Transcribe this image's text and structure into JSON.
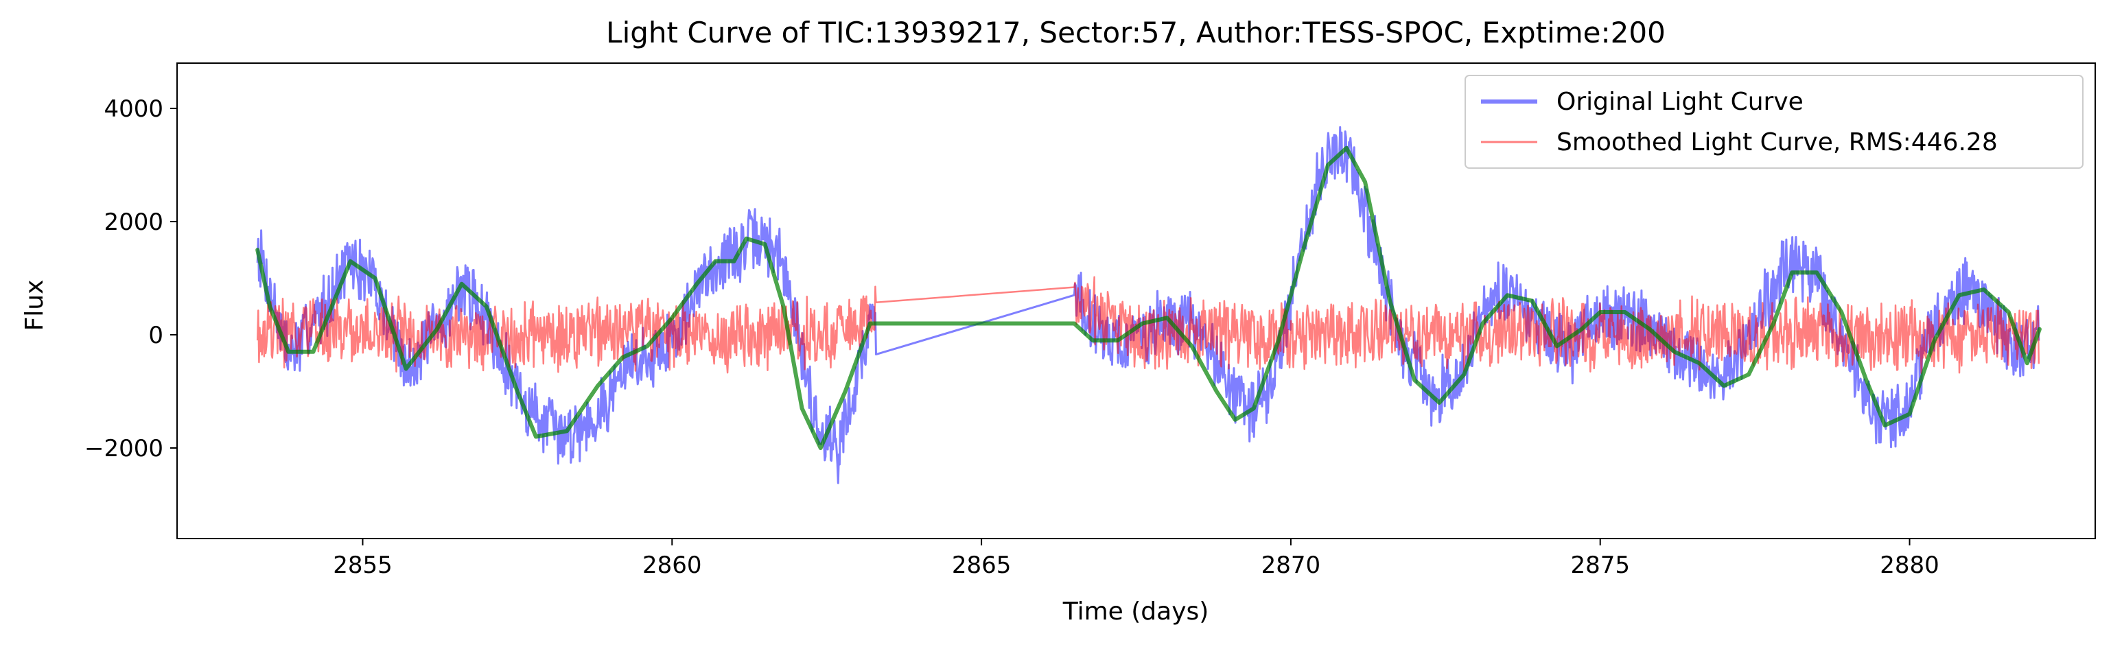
{
  "chart_data": {
    "type": "line",
    "title": "Light Curve of TIC:13939217, Sector:57, Author:TESS-SPOC, Exptime:200",
    "xlabel": "Time (days)",
    "ylabel": "Flux",
    "xlim": [
      2852.0,
      2883.0
    ],
    "ylim": [
      -3600,
      4800
    ],
    "x_ticks": [
      2855,
      2860,
      2865,
      2870,
      2875,
      2880
    ],
    "y_ticks": [
      -2000,
      0,
      2000,
      4000
    ],
    "x_tick_labels": [
      "2855",
      "2860",
      "2865",
      "2870",
      "2875",
      "2880"
    ],
    "y_tick_labels": [
      "−2000",
      "0",
      "2000",
      "4000"
    ],
    "grid": false,
    "legend_position": "top-right",
    "gap": [
      2863.3,
      2866.5
    ],
    "series": [
      {
        "name": "Original Light Curve",
        "role": "original",
        "color": "#0000ff",
        "alpha": 0.5,
        "x": [
          2853.3,
          2853.8,
          2854.2,
          2854.8,
          2855.2,
          2855.7,
          2856.3,
          2856.6,
          2857.0,
          2857.6,
          2858.2,
          2858.8,
          2859.3,
          2859.8,
          2860.2,
          2860.6,
          2861.0,
          2861.3,
          2861.7,
          2862.0,
          2862.3,
          2862.7,
          2863.2,
          2866.5,
          2866.8,
          2867.3,
          2867.9,
          2868.4,
          2868.9,
          2869.3,
          2869.7,
          2870.1,
          2870.5,
          2870.9,
          2871.3,
          2871.8,
          2872.3,
          2872.8,
          2873.2,
          2873.6,
          2874.0,
          2874.5,
          2875.0,
          2875.5,
          2876.0,
          2876.5,
          2877.0,
          2877.5,
          2878.0,
          2878.5,
          2879.0,
          2879.5,
          2879.9,
          2880.4,
          2880.9,
          2881.4,
          2881.8,
          2882.1
        ],
        "y": [
          1600,
          -400,
          200,
          1300,
          900,
          -600,
          200,
          900,
          300,
          -1200,
          -1800,
          -1400,
          -500,
          -300,
          300,
          1200,
          1400,
          1700,
          1500,
          300,
          -1500,
          -2000,
          200,
          800,
          200,
          -200,
          200,
          200,
          -600,
          -1400,
          -900,
          1200,
          3000,
          3300,
          1800,
          -200,
          -1100,
          -600,
          600,
          700,
          100,
          -300,
          400,
          300,
          -100,
          -500,
          -800,
          200,
          1200,
          1000,
          -300,
          -1600,
          -1400,
          200,
          800,
          300,
          -400,
          100
        ],
        "noise_amplitude": 650
      },
      {
        "name": "Smoothed Light Curve, RMS:446.28",
        "role": "residual",
        "color": "#ff0000",
        "alpha": 0.5,
        "x": [
          2853.3,
          2854.5,
          2855.5,
          2856.5,
          2857.5,
          2858.5,
          2859.5,
          2860.5,
          2861.5,
          2862.5,
          2863.2,
          2866.5,
          2867.5,
          2868.5,
          2869.5,
          2870.5,
          2871.5,
          2872.5,
          2873.5,
          2874.5,
          2875.5,
          2876.5,
          2877.5,
          2878.5,
          2879.5,
          2880.5,
          2881.5,
          2882.1
        ],
        "y": [
          100,
          50,
          0,
          50,
          -50,
          0,
          50,
          0,
          -50,
          0,
          400,
          650,
          0,
          50,
          0,
          -50,
          50,
          0,
          50,
          0,
          -50,
          50,
          0,
          50,
          0,
          -50,
          50,
          0
        ],
        "noise_amplitude": 700
      },
      {
        "name": "",
        "role": "smooth",
        "color": "#008000",
        "alpha": 0.7,
        "x": [
          2853.3,
          2853.5,
          2853.8,
          2854.2,
          2854.8,
          2855.2,
          2855.7,
          2856.2,
          2856.6,
          2857.0,
          2857.5,
          2857.8,
          2858.3,
          2858.8,
          2859.2,
          2859.6,
          2860.0,
          2860.4,
          2860.7,
          2861.0,
          2861.2,
          2861.5,
          2861.8,
          2862.1,
          2862.4,
          2862.8,
          2863.2,
          2866.5,
          2866.8,
          2867.2,
          2867.6,
          2868.0,
          2868.4,
          2868.8,
          2869.1,
          2869.4,
          2869.8,
          2870.2,
          2870.6,
          2870.9,
          2871.2,
          2871.6,
          2872.0,
          2872.4,
          2872.8,
          2873.1,
          2873.5,
          2873.9,
          2874.3,
          2874.7,
          2875.0,
          2875.4,
          2875.8,
          2876.2,
          2876.6,
          2877.0,
          2877.4,
          2877.8,
          2878.1,
          2878.5,
          2878.9,
          2879.3,
          2879.6,
          2880.0,
          2880.4,
          2880.8,
          2881.2,
          2881.6,
          2881.9,
          2882.1
        ],
        "y": [
          1500,
          500,
          -300,
          -300,
          1300,
          1000,
          -600,
          100,
          900,
          500,
          -1000,
          -1800,
          -1700,
          -900,
          -400,
          -200,
          300,
          900,
          1300,
          1300,
          1700,
          1600,
          500,
          -1300,
          -2000,
          -1000,
          200,
          200,
          -100,
          -100,
          200,
          300,
          -200,
          -1000,
          -1500,
          -1300,
          -100,
          1500,
          3000,
          3300,
          2700,
          600,
          -800,
          -1200,
          -700,
          200,
          700,
          600,
          -200,
          100,
          400,
          400,
          100,
          -300,
          -500,
          -900,
          -700,
          200,
          1100,
          1100,
          400,
          -800,
          -1600,
          -1400,
          -100,
          700,
          800,
          400,
          -500,
          100
        ]
      }
    ]
  }
}
